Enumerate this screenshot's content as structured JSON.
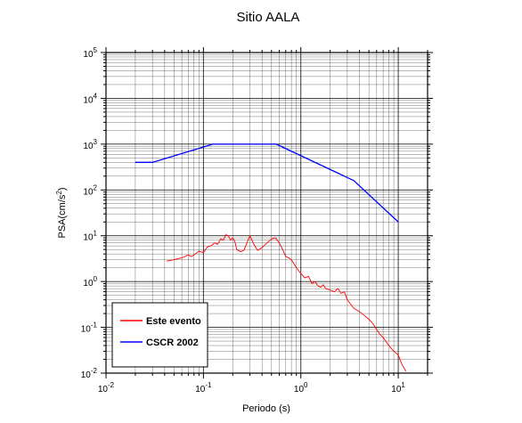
{
  "chart_data": {
    "type": "line",
    "title": "Sitio AALA",
    "xlabel": "Periodo (s)",
    "ylabel_main": "PSA(cm/s",
    "ylabel_sup": "2",
    "ylabel_tail": ")",
    "xscale": "log",
    "yscale": "log",
    "xlim": [
      0.01,
      20
    ],
    "ylim": [
      0.01,
      100000
    ],
    "grid": true,
    "legend_position": "bottom-left",
    "x_ticks": [
      {
        "value": 0.01,
        "base": "10",
        "exp": "-2"
      },
      {
        "value": 0.1,
        "base": "10",
        "exp": "-1"
      },
      {
        "value": 1,
        "base": "10",
        "exp": "0"
      },
      {
        "value": 10,
        "base": "10",
        "exp": "1"
      }
    ],
    "y_ticks": [
      {
        "value": 0.01,
        "base": "10",
        "exp": "-2"
      },
      {
        "value": 0.1,
        "base": "10",
        "exp": "-1"
      },
      {
        "value": 1,
        "base": "10",
        "exp": "0"
      },
      {
        "value": 10,
        "base": "10",
        "exp": "1"
      },
      {
        "value": 100,
        "base": "10",
        "exp": "2"
      },
      {
        "value": 1000,
        "base": "10",
        "exp": "3"
      },
      {
        "value": 10000,
        "base": "10",
        "exp": "4"
      },
      {
        "value": 100000,
        "base": "10",
        "exp": "5"
      }
    ],
    "series": [
      {
        "name": "Este evento",
        "color": "#ff0000",
        "x": [
          0.042,
          0.05,
          0.06,
          0.07,
          0.075,
          0.08,
          0.085,
          0.09,
          0.1,
          0.11,
          0.12,
          0.13,
          0.14,
          0.15,
          0.16,
          0.17,
          0.18,
          0.19,
          0.2,
          0.21,
          0.22,
          0.24,
          0.26,
          0.28,
          0.3,
          0.33,
          0.36,
          0.4,
          0.45,
          0.5,
          0.55,
          0.6,
          0.65,
          0.7,
          0.75,
          0.8,
          0.9,
          1.0,
          1.1,
          1.2,
          1.3,
          1.4,
          1.5,
          1.6,
          1.7,
          1.8,
          2.0,
          2.2,
          2.4,
          2.6,
          2.8,
          3.0,
          3.5,
          4.0,
          4.5,
          5.0,
          5.5,
          6.0,
          6.5,
          7.0,
          8.0,
          9.0,
          10.0,
          11.0,
          12.0
        ],
        "y": [
          2.8,
          3.0,
          3.3,
          3.8,
          3.5,
          3.8,
          4.2,
          4.6,
          4.3,
          5.7,
          6.0,
          7.0,
          6.5,
          8.5,
          8.0,
          10.5,
          10.0,
          8.0,
          9.0,
          7.5,
          5.0,
          4.5,
          4.8,
          7.0,
          10.0,
          6.5,
          4.8,
          5.5,
          7.0,
          8.5,
          9.0,
          7.0,
          5.0,
          3.5,
          3.3,
          3.0,
          2.0,
          1.5,
          1.2,
          1.3,
          0.9,
          1.0,
          0.8,
          0.75,
          0.85,
          0.7,
          0.65,
          0.6,
          0.7,
          0.55,
          0.6,
          0.4,
          0.26,
          0.22,
          0.18,
          0.15,
          0.12,
          0.09,
          0.07,
          0.06,
          0.04,
          0.03,
          0.025,
          0.015,
          0.011
        ]
      },
      {
        "name": "CSCR 2002",
        "color": "#0000ff",
        "x": [
          0.02,
          0.03,
          0.125,
          0.56,
          3.5,
          10.0
        ],
        "y": [
          400,
          400,
          1000,
          1000,
          160,
          20
        ]
      }
    ]
  }
}
